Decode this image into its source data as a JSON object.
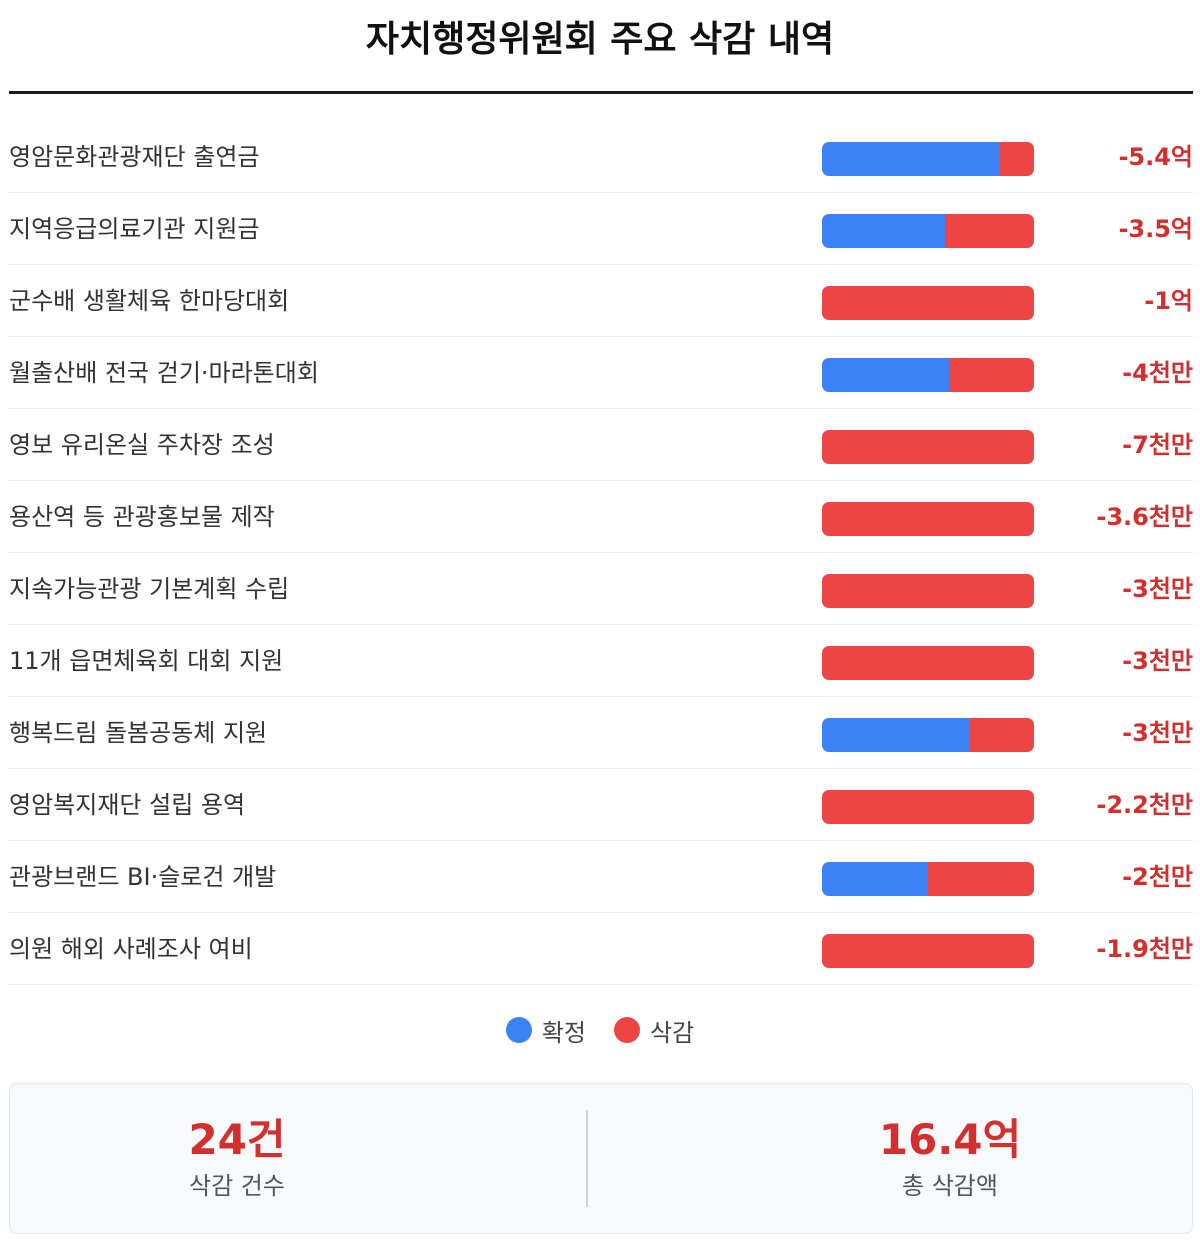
{
  "title": "자치행정위원회 주요 삭감 내역",
  "legend": [
    {
      "label": "확정",
      "color": "#3b82f6"
    },
    {
      "label": "삭감",
      "color": "#ef4444"
    }
  ],
  "items": [
    {
      "name": "영암문화관광재단 출연금",
      "amount": "-5.4억",
      "confirmed": 84,
      "cut": 16
    },
    {
      "name": "지역응급의료기관 지원금",
      "amount": "-3.5억",
      "confirmed": 58,
      "cut": 42
    },
    {
      "name": "군수배 생활체육 한마당대회",
      "amount": "-1억",
      "confirmed": 0,
      "cut": 100
    },
    {
      "name": "월출산배 전국 걷기·마라톤대회",
      "amount": "-4천만",
      "confirmed": 60,
      "cut": 40
    },
    {
      "name": "영보 유리온실 주차장 조성",
      "amount": "-7천만",
      "confirmed": 0,
      "cut": 100
    },
    {
      "name": "용산역 등 관광홍보물 제작",
      "amount": "-3.6천만",
      "confirmed": 0,
      "cut": 100
    },
    {
      "name": "지속가능관광 기본계획 수립",
      "amount": "-3천만",
      "confirmed": 0,
      "cut": 100
    },
    {
      "name": "11개 읍면체육회 대회 지원",
      "amount": "-3천만",
      "confirmed": 0,
      "cut": 100
    },
    {
      "name": "행복드림 돌봄공동체 지원",
      "amount": "-3천만",
      "confirmed": 70,
      "cut": 30
    },
    {
      "name": "영암복지재단 설립 용역",
      "amount": "-2.2천만",
      "confirmed": 0,
      "cut": 100
    },
    {
      "name": "관광브랜드 BI·슬로건 개발",
      "amount": "-2천만",
      "confirmed": 50,
      "cut": 50
    },
    {
      "name": "의원 해외 사례조사 여비",
      "amount": "-1.9천만",
      "confirmed": 0,
      "cut": 100
    }
  ],
  "summary": [
    {
      "value": "24건",
      "label": "삭감 건수"
    },
    {
      "value": "16.4억",
      "label": "총 삭감액"
    }
  ]
}
